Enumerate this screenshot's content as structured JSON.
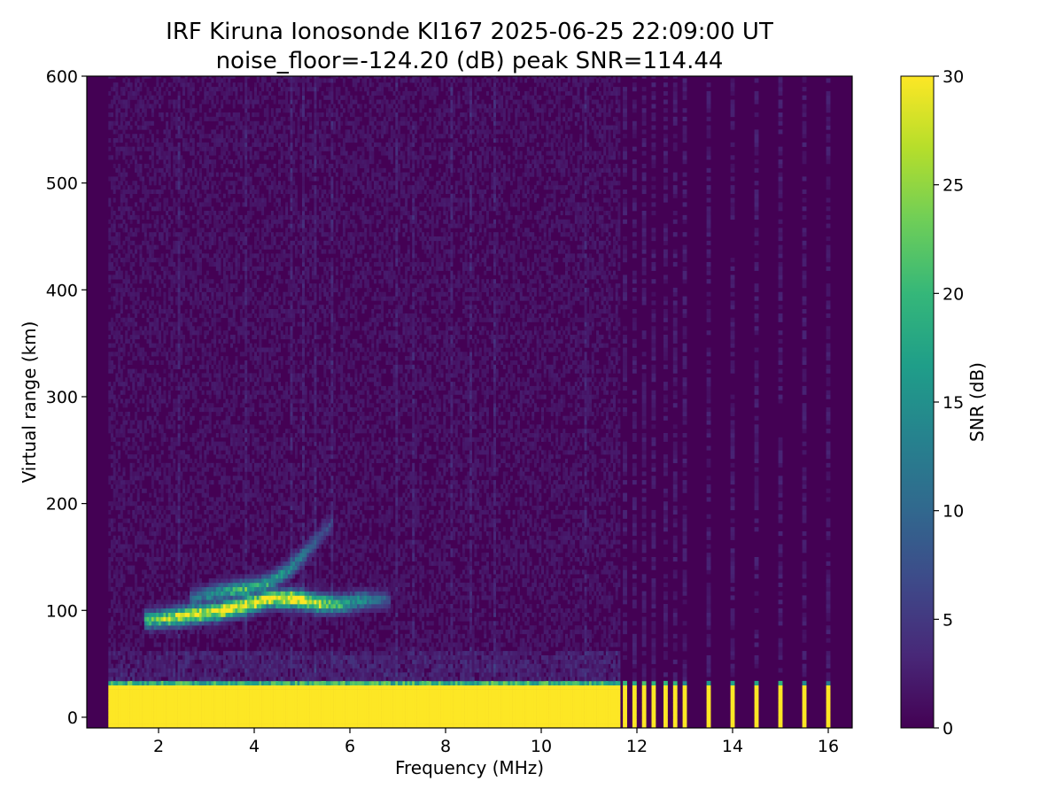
{
  "chart_data": {
    "type": "heatmap",
    "title": "IRF Kiruna Ionosonde KI167 2025-06-25 22:09:00  UT",
    "subtitle": "noise_floor=-124.20 (dB) peak SNR=114.44",
    "xlabel": "Frequency (MHz)",
    "ylabel": "Virtual range (km)",
    "xlim": [
      0.5,
      16.5
    ],
    "ylim": [
      -10,
      600
    ],
    "x_ticks": [
      "2",
      "4",
      "6",
      "8",
      "10",
      "12",
      "14",
      "16"
    ],
    "y_ticks": [
      "0",
      "100",
      "200",
      "300",
      "400",
      "500",
      "600"
    ],
    "colorbar": {
      "label": "SNR (dB)",
      "colormap": "viridis",
      "range": [
        0,
        30
      ],
      "ticks": [
        "0",
        "5",
        "10",
        "15",
        "20",
        "25",
        "30"
      ]
    },
    "colormap_stops": [
      "#440154",
      "#482878",
      "#3e4989",
      "#31688e",
      "#26828e",
      "#1f9e89",
      "#35b779",
      "#6ece58",
      "#b5de2b",
      "#fde725"
    ],
    "data_start_mhz": 0.95,
    "sparse_start_mhz": 11.65,
    "sparse_frequencies_mhz": [
      11.75,
      11.95,
      12.15,
      12.35,
      12.6,
      12.8,
      13.0,
      13.5,
      14.0,
      14.5,
      15.0,
      15.5,
      16.0
    ],
    "ground_band_km": [
      -10,
      33
    ],
    "traces": [
      {
        "name": "E-layer trace",
        "points": [
          {
            "freq_mhz": 1.7,
            "range_km": 89,
            "snr_db": 18
          },
          {
            "freq_mhz": 2.2,
            "range_km": 91,
            "snr_db": 24
          },
          {
            "freq_mhz": 2.8,
            "range_km": 95,
            "snr_db": 29
          },
          {
            "freq_mhz": 3.3,
            "range_km": 98,
            "snr_db": 30
          },
          {
            "freq_mhz": 3.8,
            "range_km": 103,
            "snr_db": 30
          },
          {
            "freq_mhz": 4.3,
            "range_km": 109,
            "snr_db": 28
          },
          {
            "freq_mhz": 4.8,
            "range_km": 109,
            "snr_db": 30
          },
          {
            "freq_mhz": 5.3,
            "range_km": 105,
            "snr_db": 26
          },
          {
            "freq_mhz": 5.8,
            "range_km": 104,
            "snr_db": 18
          },
          {
            "freq_mhz": 6.3,
            "range_km": 108,
            "snr_db": 12
          },
          {
            "freq_mhz": 6.8,
            "range_km": 108,
            "snr_db": 6
          }
        ]
      },
      {
        "name": "upper diffuse trace",
        "points": [
          {
            "freq_mhz": 2.6,
            "range_km": 108,
            "snr_db": 8
          },
          {
            "freq_mhz": 3.2,
            "range_km": 115,
            "snr_db": 14
          },
          {
            "freq_mhz": 3.8,
            "range_km": 118,
            "snr_db": 18
          },
          {
            "freq_mhz": 4.3,
            "range_km": 124,
            "snr_db": 16
          },
          {
            "freq_mhz": 4.8,
            "range_km": 140,
            "snr_db": 12
          },
          {
            "freq_mhz": 5.2,
            "range_km": 160,
            "snr_db": 8
          },
          {
            "freq_mhz": 5.6,
            "range_km": 180,
            "snr_db": 5
          }
        ]
      }
    ]
  }
}
